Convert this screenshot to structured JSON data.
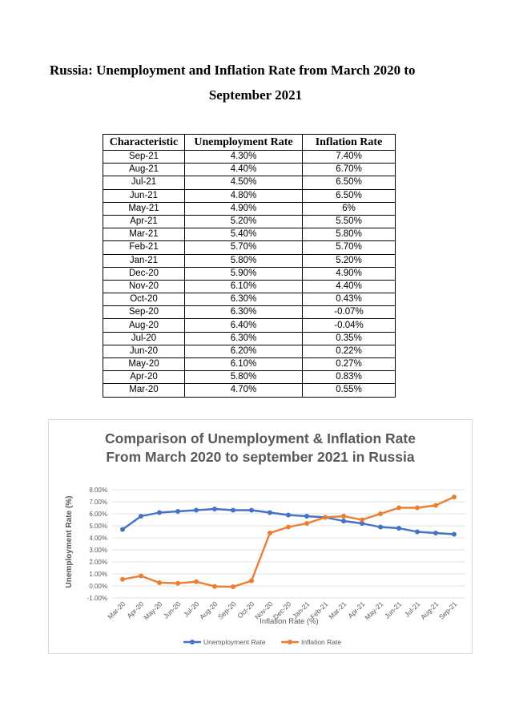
{
  "doc": {
    "title_line1": "Russia: Unemployment and Inflation Rate from March 2020 to",
    "title_line2": "September 2021"
  },
  "table": {
    "headers": [
      "Characteristic",
      "Unemployment Rate",
      "Inflation Rate"
    ],
    "rows": [
      [
        "Sep-21",
        "4.30%",
        "7.40%"
      ],
      [
        "Aug-21",
        "4.40%",
        "6.70%"
      ],
      [
        "Jul-21",
        "4.50%",
        "6.50%"
      ],
      [
        "Jun-21",
        "4.80%",
        "6.50%"
      ],
      [
        "May-21",
        "4.90%",
        "6%"
      ],
      [
        "Apr-21",
        "5.20%",
        "5.50%"
      ],
      [
        "Mar-21",
        "5.40%",
        "5.80%"
      ],
      [
        "Feb-21",
        "5.70%",
        "5.70%"
      ],
      [
        "Jan-21",
        "5.80%",
        "5.20%"
      ],
      [
        "Dec-20",
        "5.90%",
        "4.90%"
      ],
      [
        "Nov-20",
        "6.10%",
        "4.40%"
      ],
      [
        "Oct-20",
        "6.30%",
        "0.43%"
      ],
      [
        "Sep-20",
        "6.30%",
        "-0.07%"
      ],
      [
        "Aug-20",
        "6.40%",
        "-0.04%"
      ],
      [
        "Jul-20",
        "6.30%",
        "0.35%"
      ],
      [
        "Jun-20",
        "6.20%",
        "0.22%"
      ],
      [
        "May-20",
        "6.10%",
        "0.27%"
      ],
      [
        "Apr-20",
        "5.80%",
        "0.83%"
      ],
      [
        "Mar-20",
        "4.70%",
        "0.55%"
      ]
    ]
  },
  "chart_data": {
    "type": "line",
    "title_line1": "Comparison of Unemployment & Inflation Rate",
    "title_line2": "From March 2020 to september 2021 in Russia",
    "xlabel": "Inflation Rate (%)",
    "ylabel": "Unemployment Rate (%)",
    "categories": [
      "Mar-20",
      "Apr-20",
      "May-20",
      "Jun-20",
      "Jul-20",
      "Aug-20",
      "Sep-20",
      "Oct-20",
      "Nov-20",
      "Dec-20",
      "Jan-21",
      "Feb-21",
      "Mar-21",
      "Apr-21",
      "May-21",
      "Jun-21",
      "Jul-21",
      "Aug-21",
      "Sep-21"
    ],
    "y_ticks": [
      "8.00%",
      "7.00%",
      "6.00%",
      "5.00%",
      "4.00%",
      "3.00%",
      "2.00%",
      "1.00%",
      "0.00%",
      "-1.00%"
    ],
    "ylim": [
      -1,
      8
    ],
    "grid": true,
    "legend_position": "bottom",
    "series": [
      {
        "name": "Unemployment Rate",
        "color": "#4472c4",
        "values": [
          4.7,
          5.8,
          6.1,
          6.2,
          6.3,
          6.4,
          6.3,
          6.3,
          6.1,
          5.9,
          5.8,
          5.7,
          5.4,
          5.2,
          4.9,
          4.8,
          4.5,
          4.4,
          4.3
        ]
      },
      {
        "name": "Inflation Rate",
        "color": "#ed7d31",
        "values": [
          0.55,
          0.83,
          0.27,
          0.22,
          0.35,
          -0.04,
          -0.07,
          0.43,
          4.4,
          4.9,
          5.2,
          5.7,
          5.8,
          5.5,
          6.0,
          6.5,
          6.5,
          6.7,
          7.4
        ]
      }
    ]
  }
}
